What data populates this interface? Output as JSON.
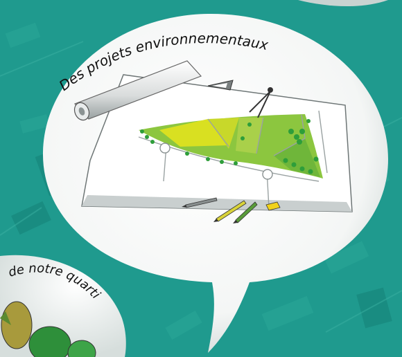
{
  "bubble_main": {
    "caption": "Des projets environnementaux"
  },
  "bubble_secondary": {
    "caption": "de notre quarti"
  },
  "colors": {
    "background_teal": "#1f9a8e",
    "bubble_white": "#ffffff",
    "plan_green": "#8cc63f",
    "plan_yellow": "#d9e021",
    "tree_green": "#2e9e3a"
  },
  "icons": [
    "rolled-blueprint-icon",
    "protractor-icon",
    "compass-icon",
    "pencil-icon",
    "eraser-icon",
    "tree-icon"
  ]
}
